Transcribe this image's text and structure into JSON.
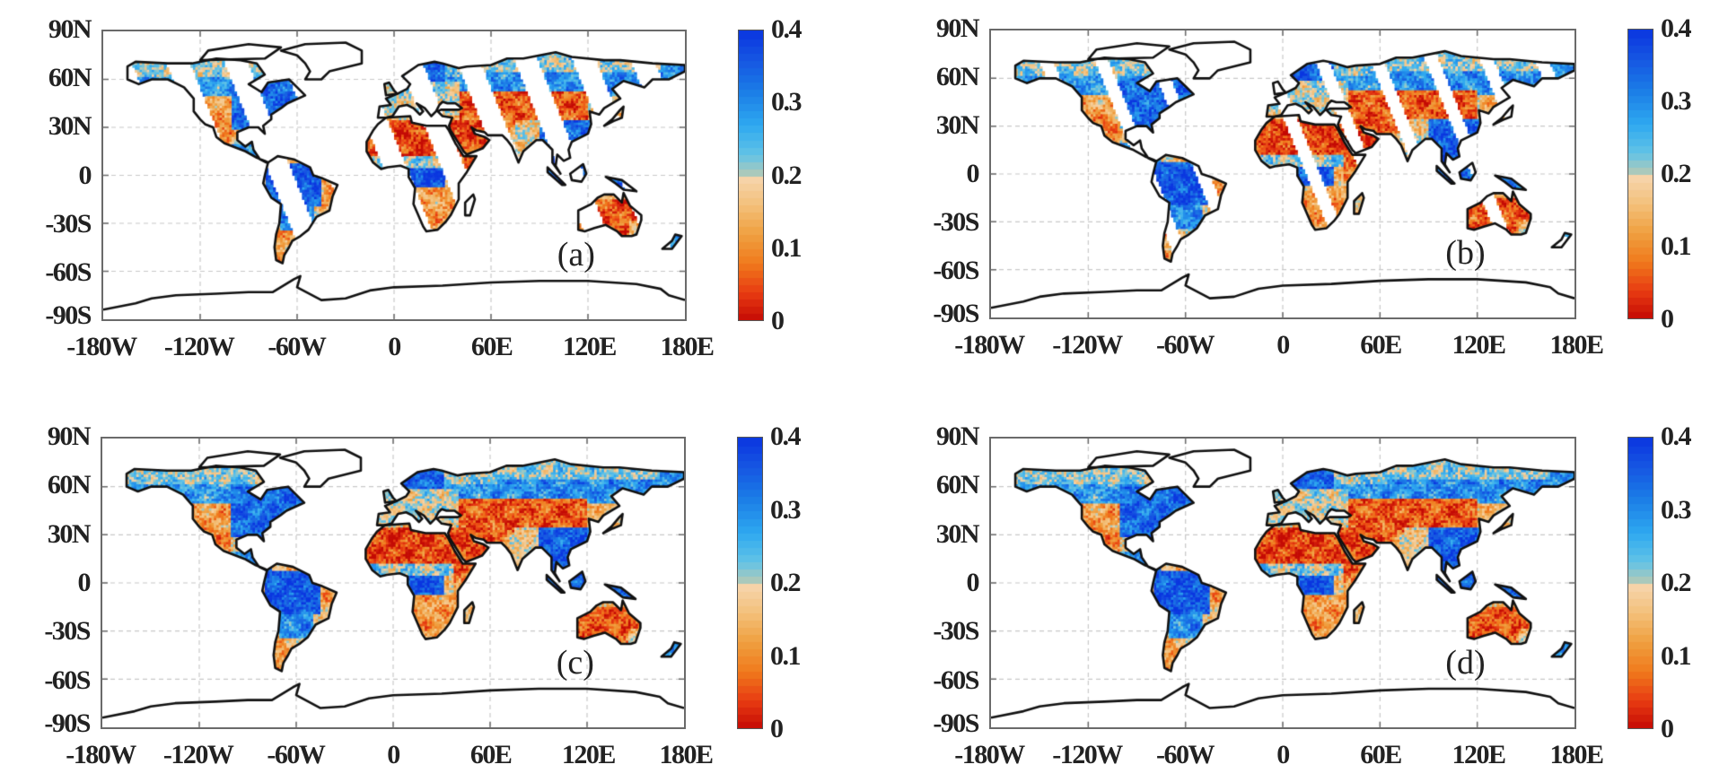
{
  "figure": {
    "panels": [
      {
        "id": "a",
        "label": "(a)",
        "coverage": "swath-sparse"
      },
      {
        "id": "b",
        "label": "(b)",
        "coverage": "swath-dense"
      },
      {
        "id": "c",
        "label": "(c)",
        "coverage": "full"
      },
      {
        "id": "d",
        "label": "(d)",
        "coverage": "full"
      }
    ]
  },
  "axes": {
    "lon_ticks": [
      "-180W",
      "-120W",
      "-60W",
      "0",
      "60E",
      "120E",
      "180E"
    ],
    "lat_ticks": [
      "90N",
      "60N",
      "30N",
      "0",
      "-30S",
      "-60S",
      "-90S"
    ]
  },
  "colorbar": {
    "ticks": [
      "0.4",
      "0.3",
      "0.2",
      "0.1",
      "0"
    ],
    "range": [
      0,
      0.4
    ],
    "colors": {
      "low": "#c40a04",
      "mid": "#f6d3a8",
      "high": "#0a36e0"
    }
  },
  "chart_data": {
    "type": "heatmap",
    "title": "",
    "panels": [
      "(a)",
      "(b)",
      "(c)",
      "(d)"
    ],
    "xlim": [
      -180,
      180
    ],
    "ylim": [
      -90,
      90
    ],
    "x_ticks": [
      "-180W",
      "-120W",
      "-60W",
      "0",
      "60E",
      "120E",
      "180E"
    ],
    "y_ticks": [
      "90N",
      "60N",
      "30N",
      "0",
      "-30S",
      "-60S",
      "-90S"
    ],
    "color_range": [
      0,
      0.4
    ],
    "colorbar_ticks": [
      "0",
      "0.1",
      "0.2",
      "0.3",
      "0.4"
    ],
    "grid": true
  }
}
